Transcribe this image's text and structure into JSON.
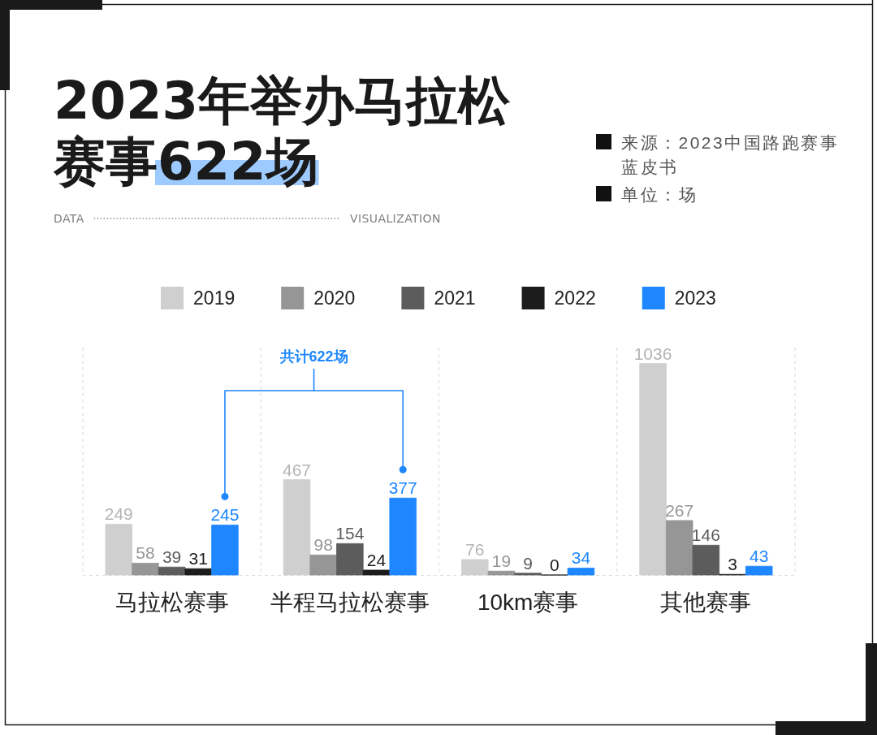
{
  "chart_data": {
    "type": "bar",
    "title": "2023年举办马拉松赛事622场",
    "annotations": [
      "DATA",
      "VISUALIZATION",
      "来源：2023中国路跑赛事蓝皮书",
      "单位：场",
      "共计622场"
    ],
    "categories": [
      "马拉松赛事",
      "半程马拉松赛事",
      "10km赛事",
      "其他赛事"
    ],
    "series": [
      {
        "name": "2019",
        "color": "#cfcfcf",
        "values": [
          249,
          467,
          76,
          1036
        ]
      },
      {
        "name": "2020",
        "color": "#969696",
        "values": [
          58,
          98,
          19,
          267
        ]
      },
      {
        "name": "2021",
        "color": "#5c5c5c",
        "values": [
          39,
          154,
          9,
          146
        ]
      },
      {
        "name": "2022",
        "color": "#1c1c1c",
        "values": [
          31,
          24,
          0,
          3
        ]
      },
      {
        "name": "2023",
        "color": "#1e87ff",
        "values": [
          245,
          377,
          34,
          43
        ]
      }
    ],
    "data_labels": true,
    "legend": "top",
    "grid": "x"
  }
}
